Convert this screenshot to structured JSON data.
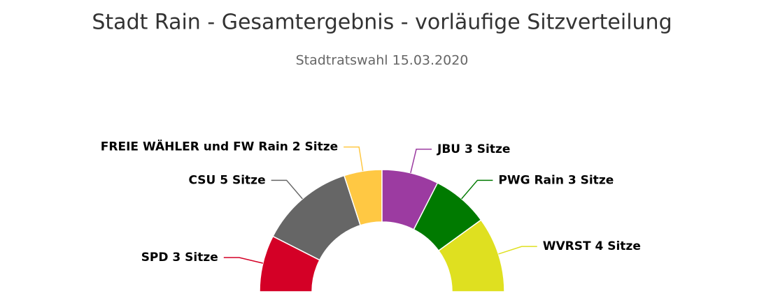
{
  "chart_data": {
    "type": "pie",
    "title": "Stadt Rain - Gesamtergebnis - vorläufige Sitzverteilung",
    "subtitle": "Stadtratswahl 15.03.2020",
    "values": [
      3,
      5,
      2,
      3,
      3,
      4
    ],
    "value_labels": [
      "SPD 3 Sitze",
      "CSU 5 Sitze",
      "FREIE WÄHLER und FW Rain 2 Sitze",
      "JBU 3 Sitze",
      "PWG Rain 3 Sitze",
      "WVRST 4 Sitze"
    ],
    "colors": [
      "#d40026",
      "#666666",
      "#ffc843",
      "#9c3ba1",
      "#007a00",
      "#dfe020"
    ]
  }
}
